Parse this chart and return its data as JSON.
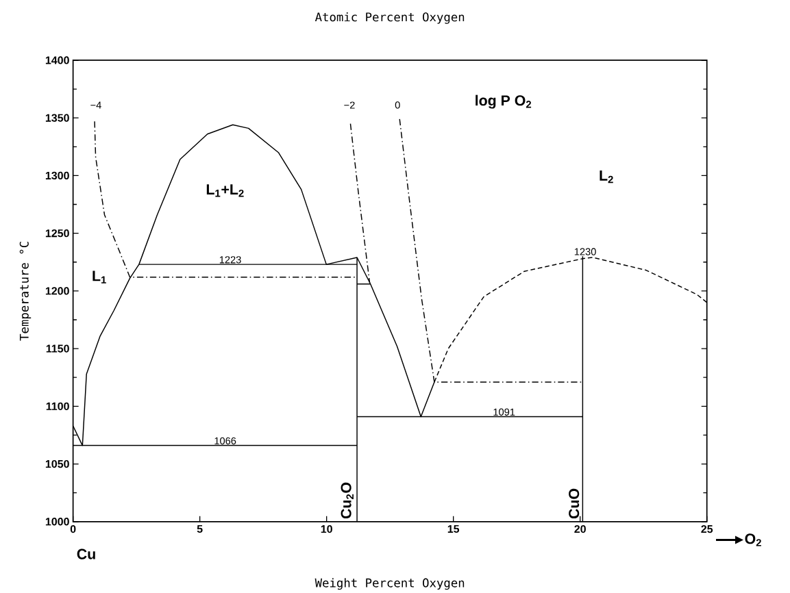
{
  "chart_data": {
    "type": "line",
    "title": "Atomic Percent Oxygen",
    "xlabel": "Weight Percent Oxygen",
    "ylabel": "Temperature °C",
    "xlim": [
      0,
      25
    ],
    "xticks": [
      0,
      5,
      10,
      15,
      20,
      25
    ],
    "ylim": [
      1000,
      1400
    ],
    "yticks": [
      1000,
      1050,
      1100,
      1150,
      1200,
      1250,
      1300,
      1350,
      1400
    ],
    "series": [
      {
        "color": "#000000",
        "line_style": "solid",
        "x": [
          0,
          0.37,
          0.53,
          1.07,
          1.61,
          2.24,
          2.6,
          3.32,
          4.22,
          5.3,
          6.3,
          6.92,
          8.1,
          9.0,
          9.99,
          11.2,
          11.73,
          12.78,
          13.72,
          14.25
        ],
        "values": [
          1083,
          1066,
          1128,
          1161,
          1183,
          1211,
          1223,
          1266,
          1314,
          1336,
          1344,
          1341,
          1320,
          1288,
          1223,
          1229,
          1206,
          1152,
          1091,
          1121
        ]
      },
      {
        "color": "#000000",
        "line_style": "solid",
        "x": [
          2.6,
          11.2
        ],
        "values": [
          1223,
          1223
        ]
      },
      {
        "color": "#000000",
        "line_style": "solid",
        "x": [
          0,
          11.2
        ],
        "values": [
          1066,
          1066
        ]
      },
      {
        "color": "#000000",
        "line_style": "solid",
        "x": [
          11.2,
          20.1
        ],
        "values": [
          1091,
          1091
        ]
      },
      {
        "color": "#000000",
        "line_style": "solid",
        "x": [
          11.2,
          11.2
        ],
        "values": [
          1000,
          1229
        ]
      },
      {
        "color": "#000000",
        "line_style": "solid",
        "x": [
          20.1,
          20.1
        ],
        "values": [
          1000,
          1230
        ]
      },
      {
        "color": "#000000",
        "line_style": "solid",
        "x": [
          11.2,
          11.73
        ],
        "values": [
          1206,
          1206
        ]
      },
      {
        "color": "#000000",
        "line_style": "dashed",
        "x": [
          14.25,
          14.8,
          16.2,
          17.8,
          20.1,
          20.5,
          22.6,
          24.6,
          25
        ],
        "values": [
          1121,
          1150,
          1195,
          1217,
          1228,
          1229,
          1218,
          1197,
          1190
        ]
      },
      {
        "color": "#000000",
        "line_style": "dashdot",
        "x": [
          0.85,
          0.89,
          1.24,
          1.78,
          2.24,
          11.2
        ],
        "values": [
          1347,
          1316,
          1266,
          1237,
          1212,
          1212
        ]
      },
      {
        "color": "#000000",
        "line_style": "dashdot",
        "x": [
          10.94,
          11.25,
          11.7
        ],
        "values": [
          1345,
          1286,
          1207
        ]
      },
      {
        "color": "#000000",
        "line_style": "dashdot",
        "x": [
          12.88,
          13.27,
          13.75,
          14.25,
          20.1
        ],
        "values": [
          1349,
          1278,
          1193,
          1121,
          1121
        ]
      }
    ],
    "annotations": [
      "−4",
      "−2",
      "0",
      "log P O$_{2}$",
      "L$_{1}$",
      "L$_{1}$+L$_{2}$",
      "L$_{2}$",
      {
        "text": "1223",
        "x": 6.2,
        "y": 1223
      },
      {
        "text": "1066",
        "x": 6.0,
        "y": 1066
      },
      {
        "text": "1091",
        "x": 17.0,
        "y": 1091
      },
      {
        "text": "1230",
        "x": 20.2,
        "y": 1230
      },
      {
        "text": "Cu$_{2}$O",
        "x": 11.2,
        "y": 1000
      },
      {
        "text": "CuO",
        "x": 20.1,
        "y": 1000
      },
      "Cu",
      "O$_{2}$"
    ]
  }
}
